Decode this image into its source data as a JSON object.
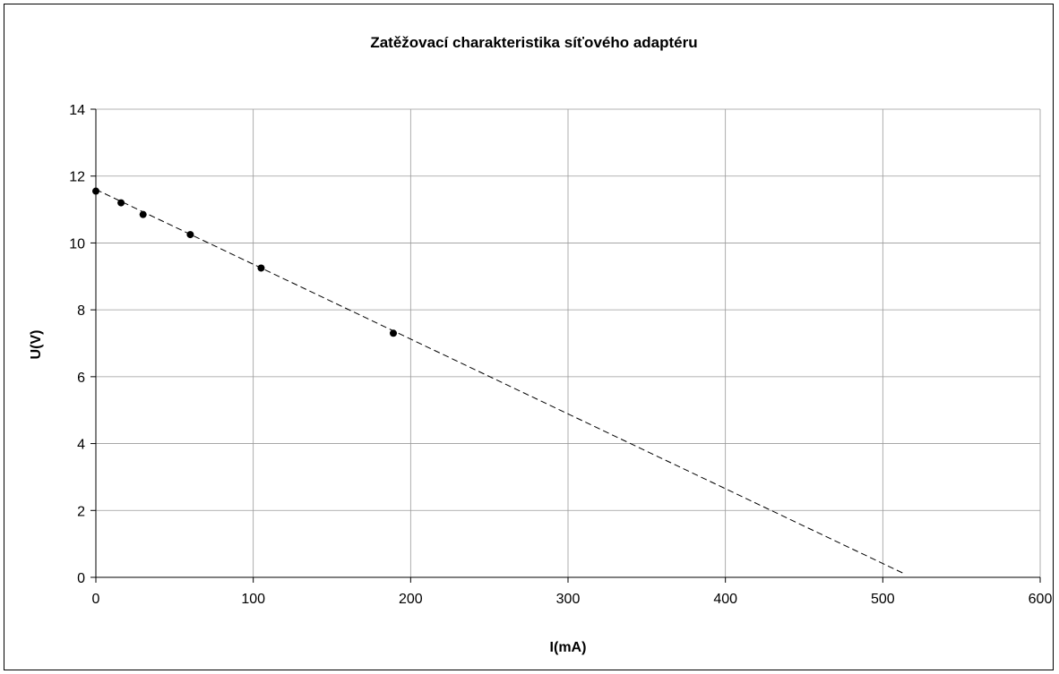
{
  "chart_data": {
    "type": "scatter",
    "title": "Zatěžovací charakteristika síťového adaptéru",
    "xlabel": "I(mA)",
    "ylabel": "U(V)",
    "xlim": [
      0,
      600
    ],
    "ylim": [
      0,
      14
    ],
    "xticks": [
      0,
      100,
      200,
      300,
      400,
      500,
      600
    ],
    "yticks": [
      0,
      2,
      4,
      6,
      8,
      10,
      12,
      14
    ],
    "grid": true,
    "legend": "none",
    "series": [
      {
        "x": [
          0,
          16,
          30,
          60,
          105,
          189
        ],
        "y": [
          11.55,
          11.2,
          10.85,
          10.25,
          9.25,
          7.3
        ],
        "color": "#000000",
        "marker": "circle"
      }
    ],
    "trendline": {
      "style": "dashed",
      "color": "#000000",
      "x": [
        0,
        514
      ],
      "y": [
        11.6,
        0.1
      ]
    }
  }
}
